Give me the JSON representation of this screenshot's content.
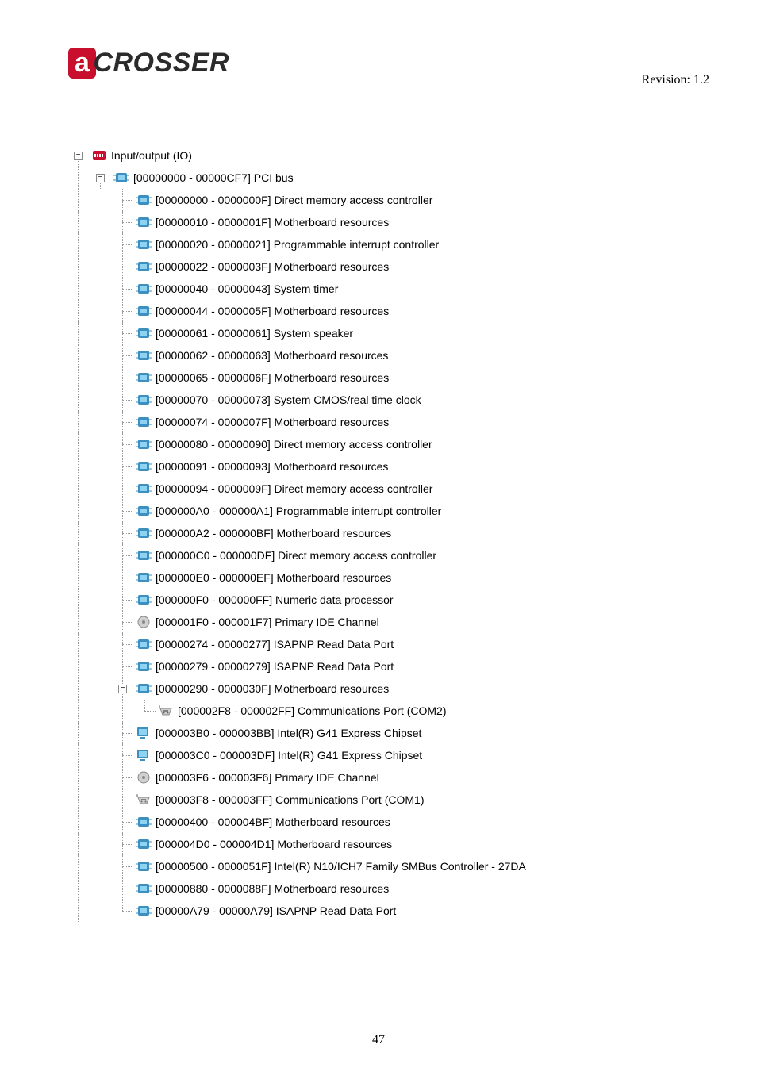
{
  "header": {
    "logo_badge": "a",
    "logo_rest": "CROSSER",
    "revision": "Revision: 1.2"
  },
  "root": {
    "label": "Input/output (IO)",
    "children": [
      {
        "label": "[00000000 - 00000CF7]  PCI bus",
        "icon": "chip",
        "children": [
          {
            "label": "[00000000 - 0000000F]  Direct memory access controller",
            "icon": "chip"
          },
          {
            "label": "[00000010 - 0000001F]  Motherboard resources",
            "icon": "chip"
          },
          {
            "label": "[00000020 - 00000021]  Programmable interrupt controller",
            "icon": "chip"
          },
          {
            "label": "[00000022 - 0000003F]  Motherboard resources",
            "icon": "chip"
          },
          {
            "label": "[00000040 - 00000043]  System timer",
            "icon": "chip"
          },
          {
            "label": "[00000044 - 0000005F]  Motherboard resources",
            "icon": "chip"
          },
          {
            "label": "[00000061 - 00000061]  System speaker",
            "icon": "chip"
          },
          {
            "label": "[00000062 - 00000063]  Motherboard resources",
            "icon": "chip"
          },
          {
            "label": "[00000065 - 0000006F]  Motherboard resources",
            "icon": "chip"
          },
          {
            "label": "[00000070 - 00000073]  System CMOS/real time clock",
            "icon": "chip"
          },
          {
            "label": "[00000074 - 0000007F]  Motherboard resources",
            "icon": "chip"
          },
          {
            "label": "[00000080 - 00000090]  Direct memory access controller",
            "icon": "chip"
          },
          {
            "label": "[00000091 - 00000093]  Motherboard resources",
            "icon": "chip"
          },
          {
            "label": "[00000094 - 0000009F]  Direct memory access controller",
            "icon": "chip"
          },
          {
            "label": "[000000A0 - 000000A1]  Programmable interrupt controller",
            "icon": "chip"
          },
          {
            "label": "[000000A2 - 000000BF]  Motherboard resources",
            "icon": "chip"
          },
          {
            "label": "[000000C0 - 000000DF]  Direct memory access controller",
            "icon": "chip"
          },
          {
            "label": "[000000E0 - 000000EF]  Motherboard resources",
            "icon": "chip"
          },
          {
            "label": "[000000F0 - 000000FF]  Numeric data processor",
            "icon": "chip"
          },
          {
            "label": "[000001F0 - 000001F7]  Primary IDE Channel",
            "icon": "ide"
          },
          {
            "label": "[00000274 - 00000277]  ISAPNP Read Data Port",
            "icon": "chip"
          },
          {
            "label": "[00000279 - 00000279]  ISAPNP Read Data Port",
            "icon": "chip"
          },
          {
            "label": "[00000290 - 0000030F]  Motherboard resources",
            "icon": "chip",
            "children": [
              {
                "label": "[000002F8 - 000002FF]  Communications Port (COM2)",
                "icon": "port"
              }
            ]
          },
          {
            "label": "[000003B0 - 000003BB]  Intel(R) G41 Express Chipset",
            "icon": "display"
          },
          {
            "label": "[000003C0 - 000003DF]  Intel(R) G41 Express Chipset",
            "icon": "display"
          },
          {
            "label": "[000003F6 - 000003F6]  Primary IDE Channel",
            "icon": "ide"
          },
          {
            "label": "[000003F8 - 000003FF]  Communications Port (COM1)",
            "icon": "port"
          },
          {
            "label": "[00000400 - 000004BF]  Motherboard resources",
            "icon": "chip"
          },
          {
            "label": "[000004D0 - 000004D1]  Motherboard resources",
            "icon": "chip"
          },
          {
            "label": "[00000500 - 0000051F]  Intel(R) N10/ICH7 Family SMBus Controller - 27DA",
            "icon": "chip"
          },
          {
            "label": "[00000880 - 0000088F]  Motherboard resources",
            "icon": "chip"
          },
          {
            "label": "[00000A79 - 00000A79]  ISAPNP Read Data Port",
            "icon": "chip"
          }
        ]
      }
    ]
  },
  "pageNum": "47"
}
